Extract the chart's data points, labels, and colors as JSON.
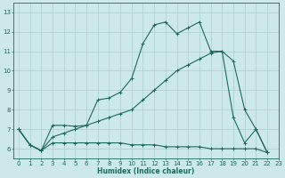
{
  "xlabel": "Humidex (Indice chaleur)",
  "ylabel": "",
  "background_color": "#cde8e8",
  "grid_color": "#aacece",
  "line_color": "#1a6b5a",
  "xlim": [
    -0.5,
    23
  ],
  "ylim": [
    5.5,
    13.5
  ],
  "xticks": [
    0,
    1,
    2,
    3,
    4,
    5,
    6,
    7,
    8,
    9,
    10,
    11,
    12,
    13,
    14,
    15,
    16,
    17,
    18,
    19,
    20,
    21,
    22,
    23
  ],
  "yticks": [
    6,
    7,
    8,
    9,
    10,
    11,
    12,
    13
  ],
  "series": [
    {
      "x": [
        0,
        1,
        2,
        3,
        4,
        5,
        6,
        7,
        8,
        9,
        10,
        11,
        12,
        13,
        14,
        15,
        16,
        17,
        18,
        19,
        20,
        21,
        22
      ],
      "y": [
        7.0,
        6.2,
        5.9,
        7.2,
        7.2,
        7.15,
        7.2,
        8.5,
        8.6,
        8.9,
        9.6,
        11.4,
        12.35,
        12.5,
        11.9,
        12.2,
        12.5,
        11.0,
        11.0,
        7.6,
        6.3,
        7.0,
        5.8
      ]
    },
    {
      "x": [
        0,
        1,
        2,
        3,
        4,
        5,
        6,
        7,
        8,
        9,
        10,
        11,
        12,
        13,
        14,
        15,
        16,
        17,
        18,
        19,
        20,
        21,
        22
      ],
      "y": [
        7.0,
        6.2,
        5.9,
        6.6,
        6.8,
        7.0,
        7.2,
        7.4,
        7.6,
        7.8,
        8.0,
        8.5,
        9.0,
        9.5,
        10.0,
        10.3,
        10.6,
        10.9,
        11.0,
        10.5,
        8.0,
        7.0,
        5.8
      ]
    },
    {
      "x": [
        0,
        1,
        2,
        3,
        4,
        5,
        6,
        7,
        8,
        9,
        10,
        11,
        12,
        13,
        14,
        15,
        16,
        17,
        18,
        19,
        20,
        21,
        22
      ],
      "y": [
        7.0,
        6.2,
        5.9,
        6.3,
        6.3,
        6.3,
        6.3,
        6.3,
        6.3,
        6.3,
        6.2,
        6.2,
        6.2,
        6.1,
        6.1,
        6.1,
        6.1,
        6.0,
        6.0,
        6.0,
        6.0,
        6.0,
        5.8
      ]
    }
  ]
}
